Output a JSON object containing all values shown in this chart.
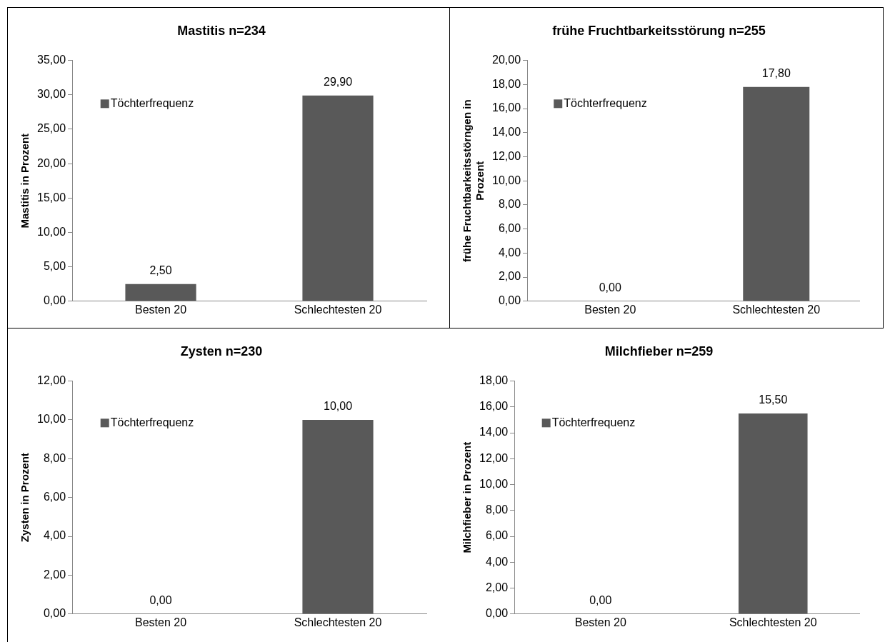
{
  "chart_data": [
    {
      "type": "bar",
      "title": "Mastitis n=234",
      "ylabel": "Mastitis in Prozent",
      "categories": [
        "Besten 20",
        "Schlechtesten 20"
      ],
      "series": [
        {
          "name": "Töchterfrequenz",
          "color": "#595959",
          "values": [
            2.5,
            29.9
          ],
          "value_labels": [
            "2,50",
            "29,90"
          ]
        }
      ],
      "ylim": [
        0,
        35
      ],
      "yticks": [
        {
          "value": 0,
          "label": "0,00"
        },
        {
          "value": 5,
          "label": "5,00"
        },
        {
          "value": 10,
          "label": "10,00"
        },
        {
          "value": 15,
          "label": "15,00"
        },
        {
          "value": 20,
          "label": "20,00"
        },
        {
          "value": 25,
          "label": "25,00"
        },
        {
          "value": 30,
          "label": "30,00"
        },
        {
          "value": 35,
          "label": "35,00"
        }
      ],
      "legend": "top left",
      "grid": false
    },
    {
      "type": "bar",
      "title": "frühe Fruchtbarkeitsstörung n=255",
      "ylabel": "frühe Fruchtbarkeitsstörngen in Prozent",
      "categories": [
        "Besten 20",
        "Schlechtesten 20"
      ],
      "series": [
        {
          "name": "Töchterfrequenz",
          "color": "#595959",
          "values": [
            0,
            17.8
          ],
          "value_labels": [
            "0,00",
            "17,80"
          ]
        }
      ],
      "ylim": [
        0,
        20
      ],
      "yticks": [
        {
          "value": 0,
          "label": "0,00"
        },
        {
          "value": 2,
          "label": "2,00"
        },
        {
          "value": 4,
          "label": "4,00"
        },
        {
          "value": 6,
          "label": "6,00"
        },
        {
          "value": 8,
          "label": "8,00"
        },
        {
          "value": 10,
          "label": "10,00"
        },
        {
          "value": 12,
          "label": "12,00"
        },
        {
          "value": 14,
          "label": "14,00"
        },
        {
          "value": 16,
          "label": "16,00"
        },
        {
          "value": 18,
          "label": "18,00"
        },
        {
          "value": 20,
          "label": "20,00"
        }
      ],
      "legend": "top left",
      "grid": false
    },
    {
      "type": "bar",
      "title": "Zysten n=230",
      "ylabel": "Zysten in Prozent",
      "categories": [
        "Besten 20",
        "Schlechtesten 20"
      ],
      "series": [
        {
          "name": "Töchterfrequenz",
          "color": "#595959",
          "values": [
            0,
            10
          ],
          "value_labels": [
            "0,00",
            "10,00"
          ]
        }
      ],
      "ylim": [
        0,
        12
      ],
      "yticks": [
        {
          "value": 0,
          "label": "0,00"
        },
        {
          "value": 2,
          "label": "2,00"
        },
        {
          "value": 4,
          "label": "4,00"
        },
        {
          "value": 6,
          "label": "6,00"
        },
        {
          "value": 8,
          "label": "8,00"
        },
        {
          "value": 10,
          "label": "10,00"
        },
        {
          "value": 12,
          "label": "12,00"
        }
      ],
      "legend": "top left",
      "grid": false
    },
    {
      "type": "bar",
      "title": "Milchfieber n=259",
      "ylabel": "Milchfieber in Prozent",
      "categories": [
        "Besten 20",
        "Schlechtesten 20"
      ],
      "series": [
        {
          "name": "Töchterfrequenz",
          "color": "#595959",
          "values": [
            0,
            15.5
          ],
          "value_labels": [
            "0,00",
            "15,50"
          ]
        }
      ],
      "ylim": [
        0,
        18
      ],
      "yticks": [
        {
          "value": 0,
          "label": "0,00"
        },
        {
          "value": 2,
          "label": "2,00"
        },
        {
          "value": 4,
          "label": "4,00"
        },
        {
          "value": 6,
          "label": "6,00"
        },
        {
          "value": 8,
          "label": "8,00"
        },
        {
          "value": 10,
          "label": "10,00"
        },
        {
          "value": 12,
          "label": "12,00"
        },
        {
          "value": 14,
          "label": "14,00"
        },
        {
          "value": 16,
          "label": "16,00"
        },
        {
          "value": 18,
          "label": "18,00"
        }
      ],
      "legend": "top left",
      "grid": false
    }
  ]
}
